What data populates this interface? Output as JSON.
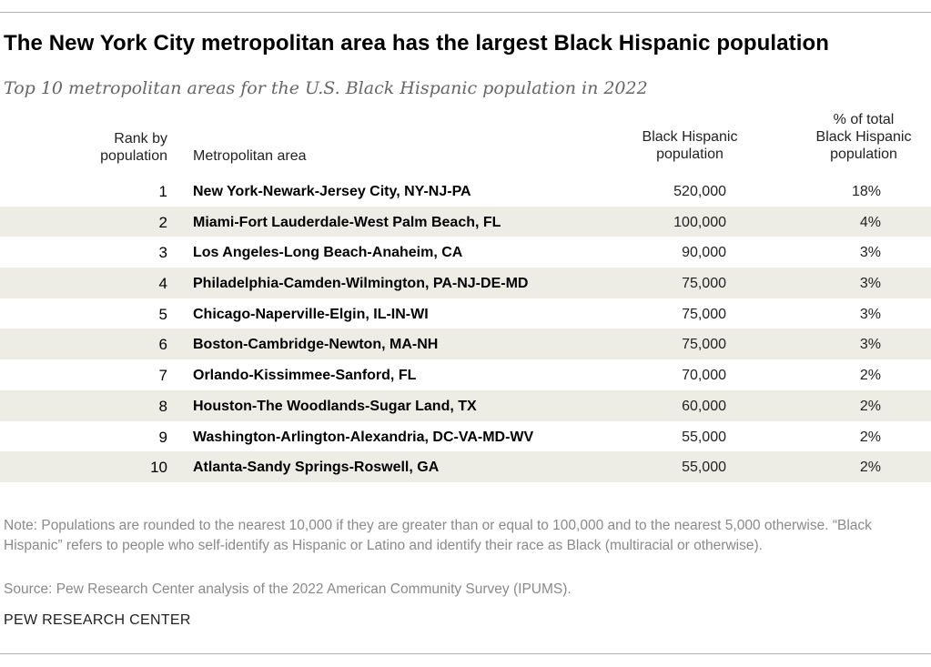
{
  "title": "The New York City metropolitan area has the largest Black Hispanic population",
  "subtitle": "Top 10 metropolitan areas for the U.S. Black Hispanic population in 2022",
  "headers": {
    "rank_line1": "Rank by",
    "rank_line2": "population",
    "metro": "Metropolitan area",
    "pop_line1": "Black Hispanic",
    "pop_line2": "population",
    "pct_line1": "% of total",
    "pct_line2": "Black Hispanic",
    "pct_line3": "population"
  },
  "chart_data": {
    "type": "table",
    "title": "The New York City metropolitan area has the largest Black Hispanic population",
    "subtitle": "Top 10 metropolitan areas for the U.S. Black Hispanic population in 2022",
    "columns": [
      "Rank by population",
      "Metropolitan area",
      "Black Hispanic population",
      "% of total Black Hispanic population"
    ],
    "rows": [
      {
        "rank": "1",
        "metro": "New York-Newark-Jersey City, NY-NJ-PA",
        "population": "520,000",
        "pct": "18%"
      },
      {
        "rank": "2",
        "metro": "Miami-Fort Lauderdale-West Palm Beach, FL",
        "population": "100,000",
        "pct": "4%"
      },
      {
        "rank": "3",
        "metro": "Los Angeles-Long Beach-Anaheim, CA",
        "population": "90,000",
        "pct": "3%"
      },
      {
        "rank": "4",
        "metro": "Philadelphia-Camden-Wilmington, PA-NJ-DE-MD",
        "population": "75,000",
        "pct": "3%"
      },
      {
        "rank": "5",
        "metro": "Chicago-Naperville-Elgin, IL-IN-WI",
        "population": "75,000",
        "pct": "3%"
      },
      {
        "rank": "6",
        "metro": "Boston-Cambridge-Newton, MA-NH",
        "population": "75,000",
        "pct": "3%"
      },
      {
        "rank": "7",
        "metro": "Orlando-Kissimmee-Sanford, FL",
        "population": "70,000",
        "pct": "2%"
      },
      {
        "rank": "8",
        "metro": "Houston-The Woodlands-Sugar Land, TX",
        "population": "60,000",
        "pct": "2%"
      },
      {
        "rank": "9",
        "metro": "Washington-Arlington-Alexandria, DC-VA-MD-WV",
        "population": "55,000",
        "pct": "2%"
      },
      {
        "rank": "10",
        "metro": "Atlanta-Sandy Springs-Roswell, GA",
        "population": "55,000",
        "pct": "2%"
      }
    ]
  },
  "note": "Note: Populations are rounded to the nearest 10,000 if they are greater than or equal to 100,000 and to the nearest 5,000 otherwise. “Black Hispanic” refers to people who self-identify as Hispanic or Latino and identify their race as Black (multiracial or otherwise).",
  "source": "Source: Pew Research Center analysis of the 2022 American Community Survey (IPUMS).",
  "brand": "PEW RESEARCH CENTER",
  "colors": {
    "stripe": "#eeede5",
    "muted_text": "#8a8a8a",
    "subtitle_text": "#666666"
  }
}
